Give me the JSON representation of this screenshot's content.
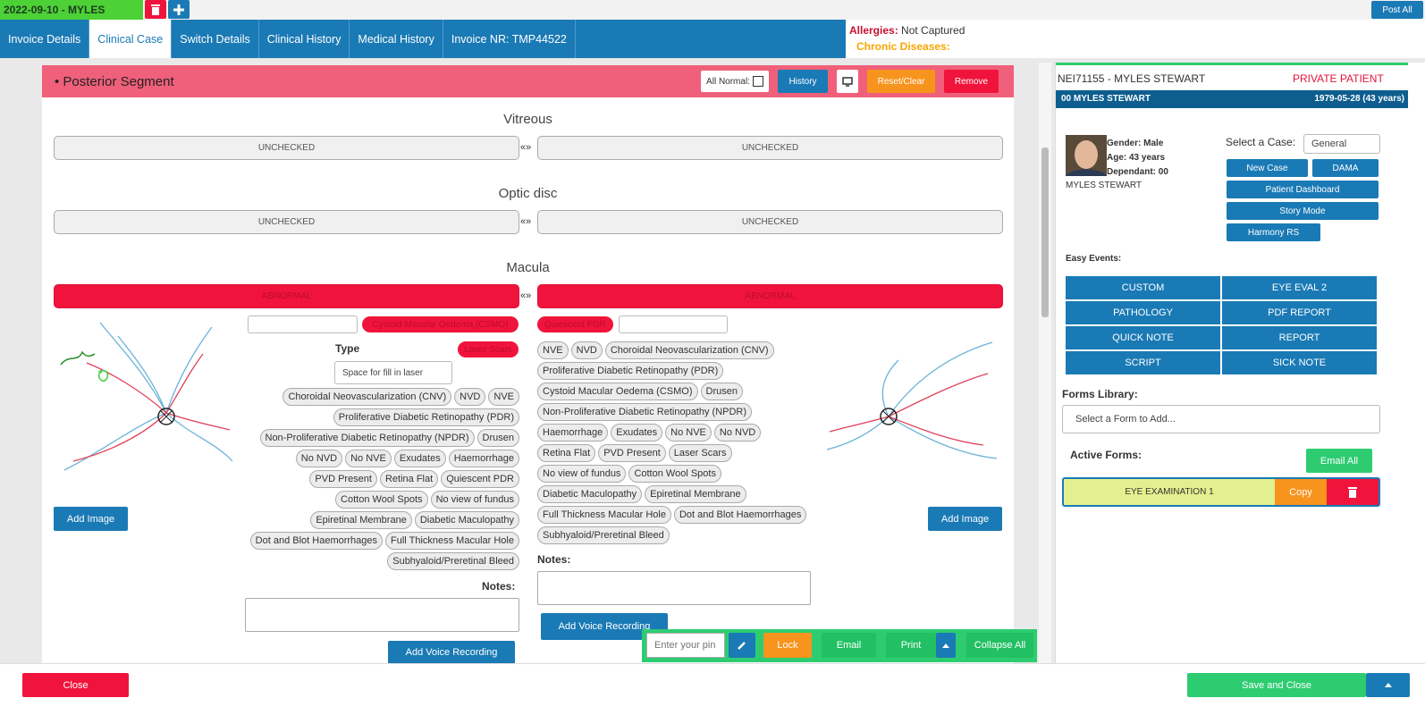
{
  "top_bar": {
    "encounter_tab": "2022-09-10 - MYLES",
    "post_all": "Post All"
  },
  "tabs": [
    "Invoice Details",
    "Clinical Case",
    "Switch Details",
    "Clinical History",
    "Medical History",
    "Invoice NR: TMP44522"
  ],
  "alerts": {
    "allergies_label": "Allergies:",
    "allergies_value": "Not Captured",
    "chronic_label": "Chronic Diseases:"
  },
  "section": {
    "title": "• Posterior Segment",
    "all_normal": "All Normal:",
    "history": "History",
    "reset": "Reset/Clear",
    "remove": "Remove"
  },
  "swap": "«»",
  "vitreous": {
    "title": "Vitreous",
    "left": "UNCHECKED",
    "right": "UNCHECKED"
  },
  "optic_disc": {
    "title": "Optic disc",
    "left": "UNCHECKED",
    "right": "UNCHECKED"
  },
  "macula": {
    "title": "Macula",
    "left": {
      "status": "ABNORMAL",
      "tag": "Cystoid Macular Oedema (CSMO)",
      "type_label": "Type",
      "type_tag": "Laser Scars",
      "laser_select": "Space for fill in laser",
      "chips": [
        "Choroidal Neovascularization (CNV)",
        "NVD",
        "NVE",
        "Proliferative Diabetic Retinopathy (PDR)",
        "Non-Proliferative Diabetic Retinopathy (NPDR)",
        "Drusen",
        "No NVD",
        "No NVE",
        "Exudates",
        "Haemorrhage",
        "PVD Present",
        "Retina Flat",
        "Quiescent PDR",
        "Cotton Wool Spots",
        "No view of fundus",
        "Epiretinal Membrane",
        "Diabetic Maculopathy",
        "Dot and Blot Haemorrhages",
        "Full Thickness Macular Hole",
        "Subhyaloid/Preretinal Bleed"
      ],
      "notes_label": "Notes:",
      "voice": "Add Voice Recording",
      "add_image": "Add Image"
    },
    "right": {
      "status": "ABNORMAL",
      "tag": "Quiescent PDR",
      "chips": [
        "NVE",
        "NVD",
        "Choroidal Neovascularization (CNV)",
        "Proliferative Diabetic Retinopathy (PDR)",
        "Cystoid Macular Oedema (CSMO)",
        "Drusen",
        "Non-Proliferative Diabetic Retinopathy (NPDR)",
        "Haemorrhage",
        "Exudates",
        "No NVE",
        "No NVD",
        "Retina Flat",
        "PVD Present",
        "Laser Scars",
        "No view of fundus",
        "Cotton Wool Spots",
        "Diabetic Maculopathy",
        "Epiretinal Membrane",
        "Full Thickness Macular Hole",
        "Dot and Blot Haemorrhages",
        "Subhyaloid/Preretinal Bleed"
      ],
      "notes_label": "Notes:",
      "voice": "Add Voice Recording",
      "add_image": "Add Image"
    }
  },
  "toolbar": {
    "pin_placeholder": "Enter your pin",
    "lock": "Lock",
    "email": "Email",
    "print": "Print",
    "collapse": "Collapse All"
  },
  "footer": {
    "close": "Close",
    "save": "Save and Close"
  },
  "patient": {
    "header_id": "NEI71155 - MYLES STEWART",
    "status": "PRIVATE PATIENT",
    "bar_name": "00 MYLES STEWART",
    "bar_dob": "1979-05-28 (43 years)",
    "gender": "Gender: Male",
    "age": "Age: 43 years",
    "dependant": "Dependant: 00",
    "name": "MYLES STEWART",
    "case_label": "Select a Case:",
    "case_value": "General",
    "buttons": {
      "new_case": "New Case",
      "dama": "DAMA",
      "dashboard": "Patient Dashboard",
      "story": "Story Mode",
      "harmony": "Harmony RS"
    },
    "easy_events_label": "Easy Events:",
    "easy_events": [
      "CUSTOM",
      "EYE EVAL 2",
      "PATHOLOGY",
      "PDF REPORT",
      "QUICK NOTE",
      "REPORT",
      "SCRIPT",
      "SICK NOTE"
    ],
    "forms_label": "Forms Library:",
    "forms_placeholder": "Select a Form to Add...",
    "active_label": "Active Forms:",
    "email_all": "Email All",
    "active_form": "EYE EXAMINATION 1",
    "copy": "Copy"
  }
}
